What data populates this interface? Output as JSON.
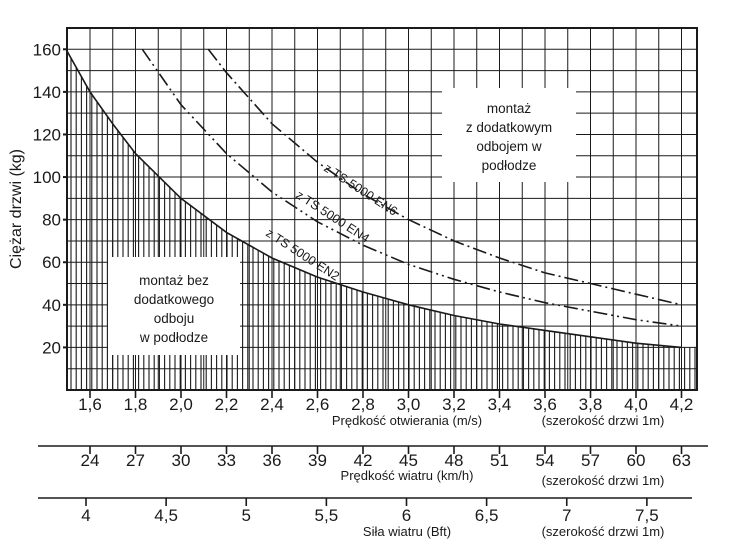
{
  "chart_data": {
    "type": "line",
    "ylabel": "Ciężar drzwi (kg)",
    "y_ticks": [
      20,
      40,
      60,
      80,
      100,
      120,
      140,
      160
    ],
    "ylim": [
      0,
      170
    ],
    "xlim": [
      1.5,
      4.2
    ],
    "x_axes": [
      {
        "label": "Prędkość otwierania (m/s)",
        "note": "(szerokość drzwi 1m)",
        "ticks": [
          {
            "value": 1.6,
            "label": "1,6"
          },
          {
            "value": 1.8,
            "label": "1,8"
          },
          {
            "value": 2.0,
            "label": "2,0"
          },
          {
            "value": 2.2,
            "label": "2,2"
          },
          {
            "value": 2.4,
            "label": "2,4"
          },
          {
            "value": 2.6,
            "label": "2,6"
          },
          {
            "value": 2.8,
            "label": "2,8"
          },
          {
            "value": 3.0,
            "label": "3,0"
          },
          {
            "value": 3.2,
            "label": "3,2"
          },
          {
            "value": 3.4,
            "label": "3,4"
          },
          {
            "value": 3.6,
            "label": "3,6"
          },
          {
            "value": 3.8,
            "label": "3,8"
          },
          {
            "value": 4.0,
            "label": "4,0"
          },
          {
            "value": 4.2,
            "label": "4,2"
          }
        ]
      },
      {
        "label": "Prędkość wiatru (km/h)",
        "note": "(szerokość drzwi 1m)",
        "ticks": [
          {
            "value": 24,
            "label": "24"
          },
          {
            "value": 27,
            "label": "27"
          },
          {
            "value": 30,
            "label": "30"
          },
          {
            "value": 33,
            "label": "33"
          },
          {
            "value": 36,
            "label": "36"
          },
          {
            "value": 39,
            "label": "39"
          },
          {
            "value": 42,
            "label": "42"
          },
          {
            "value": 45,
            "label": "45"
          },
          {
            "value": 48,
            "label": "48"
          },
          {
            "value": 51,
            "label": "51"
          },
          {
            "value": 54,
            "label": "54"
          },
          {
            "value": 57,
            "label": "57"
          },
          {
            "value": 60,
            "label": "60"
          },
          {
            "value": 63,
            "label": "63"
          }
        ]
      },
      {
        "label": "Siła wiatru (Bft)",
        "note": "(szerokość drzwi 1m)",
        "ticks": [
          {
            "value": 4,
            "label": "4"
          },
          {
            "value": 4.5,
            "label": "4,5"
          },
          {
            "value": 5,
            "label": "5"
          },
          {
            "value": 5.5,
            "label": "5,5"
          },
          {
            "value": 6,
            "label": "6"
          },
          {
            "value": 6.5,
            "label": "6,5"
          },
          {
            "value": 7,
            "label": "7"
          },
          {
            "value": 7.5,
            "label": "7,5"
          }
        ]
      }
    ],
    "series": [
      {
        "name": "z TS 5000 EN2",
        "style": "solid",
        "x": [
          1.5,
          1.6,
          1.7,
          1.8,
          2.0,
          2.2,
          2.4,
          2.6,
          2.8,
          3.0,
          3.2,
          3.4,
          3.6,
          3.8,
          4.0,
          4.2
        ],
        "y": [
          159,
          140,
          125,
          111,
          90,
          74,
          62,
          53,
          46,
          40,
          35,
          31,
          28,
          25,
          22,
          20
        ]
      },
      {
        "name": "z TS 5000 EN4",
        "style": "dash-dot-dot",
        "x": [
          1.83,
          2.0,
          2.2,
          2.4,
          2.6,
          2.8,
          3.0,
          3.2,
          3.4,
          3.6,
          3.8,
          4.0,
          4.2
        ],
        "y": [
          160,
          134,
          111,
          93,
          79,
          68,
          59,
          52,
          46,
          41,
          37,
          33,
          30
        ]
      },
      {
        "name": "z TS 5000 EN6",
        "style": "dash-dot",
        "x": [
          2.12,
          2.2,
          2.4,
          2.6,
          2.8,
          3.0,
          3.2,
          3.4,
          3.6,
          3.8,
          4.0,
          4.2
        ],
        "y": [
          160,
          149,
          125,
          107,
          92,
          80,
          70,
          62,
          55,
          50,
          45,
          40
        ]
      }
    ],
    "annotations": {
      "lower": [
        "montaż bez",
        "dodatkowego",
        "odboju",
        "w podłodze"
      ],
      "upper": [
        "montaż",
        "z dodatkowym",
        "odbojem w",
        "podłodze"
      ]
    },
    "grid": true
  }
}
